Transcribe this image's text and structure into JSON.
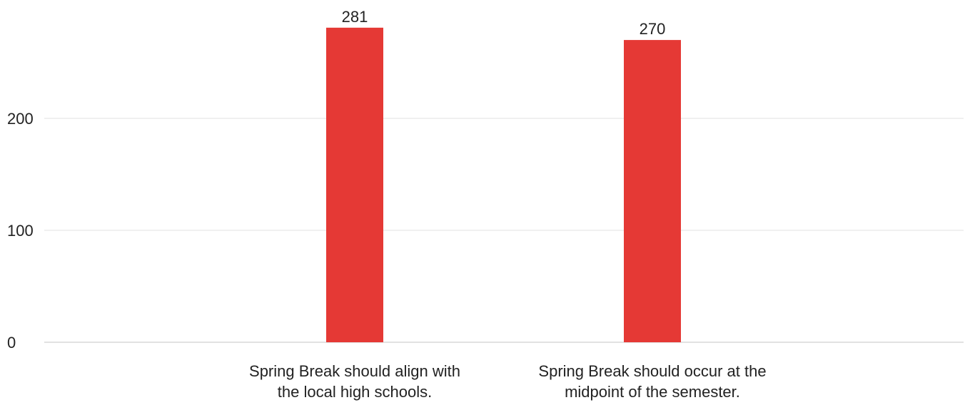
{
  "chart_data": {
    "type": "bar",
    "categories": [
      [
        "Spring Break should align with",
        "the local high schools."
      ],
      [
        "Spring Break should occur at the",
        "midpoint of the semester."
      ]
    ],
    "values": [
      281,
      270
    ],
    "data_labels": [
      "281",
      "270"
    ],
    "yticks": [
      {
        "value": 0,
        "label": "0"
      },
      {
        "value": 100,
        "label": "100"
      },
      {
        "value": 200,
        "label": "200"
      }
    ],
    "ylim": [
      0,
      300
    ],
    "grid": true,
    "title": "",
    "xlabel": "",
    "ylabel": "",
    "bar_color": "#e53935",
    "grid_color": "#e6e6e6",
    "text_color": "#222222"
  }
}
